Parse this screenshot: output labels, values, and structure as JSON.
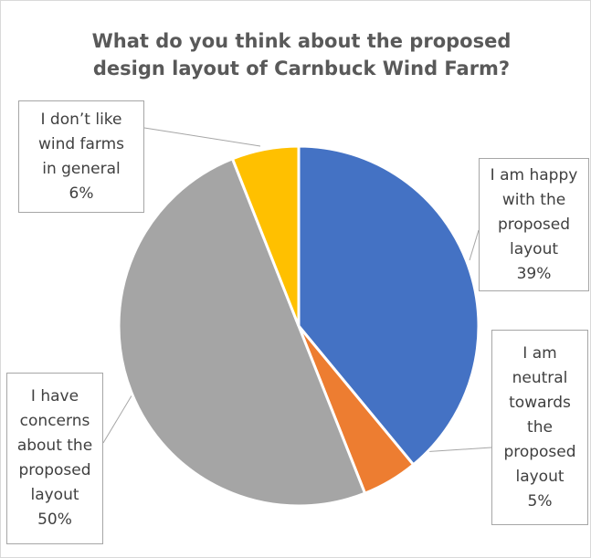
{
  "chart_data": {
    "type": "pie",
    "title_lines": [
      "What do you think about the proposed",
      "design layout of Carnbuck Wind Farm?"
    ],
    "legend": "none",
    "series": [
      {
        "label_lines": [
          "I am happy",
          "with the",
          "proposed",
          "layout"
        ],
        "value": 39,
        "value_label": "39%",
        "color": "#4472c4"
      },
      {
        "label_lines": [
          "I am",
          "neutral",
          "towards",
          "the",
          "proposed",
          "layout"
        ],
        "value": 5,
        "value_label": "5%",
        "color": "#ed7d31"
      },
      {
        "label_lines": [
          "I have",
          "concerns",
          "about the",
          "proposed",
          "layout"
        ],
        "value": 50,
        "value_label": "50%",
        "color": "#a5a5a5"
      },
      {
        "label_lines": [
          "I don’t like",
          "wind farms",
          "in general"
        ],
        "value": 6,
        "value_label": "6%",
        "color": "#ffc000"
      }
    ]
  }
}
